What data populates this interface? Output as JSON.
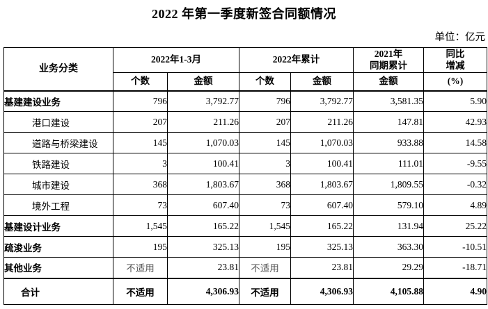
{
  "page": {
    "title": "2022 年第一季度新签合同额情况",
    "unit_label": "单位：亿元"
  },
  "table": {
    "header": {
      "category": "业务分类",
      "period_2022_q1": "2022年1-3月",
      "period_2022_cum": "2022年累计",
      "period_2021_cum": "2021年\n同期累计",
      "yoy_change": "同比\n增减"
    },
    "subheaders": [
      "个数",
      "金额",
      "个数",
      "金额",
      "金额",
      "(%)"
    ],
    "rows": [
      {
        "label": "基建建设业务",
        "bold": true,
        "indent": false,
        "total": false,
        "values": [
          "796",
          "3,792.77",
          "796",
          "3,792.77",
          "3,581.35",
          "5.90"
        ]
      },
      {
        "label": "港口建设",
        "bold": false,
        "indent": true,
        "total": false,
        "values": [
          "207",
          "211.26",
          "207",
          "211.26",
          "147.81",
          "42.93"
        ]
      },
      {
        "label": "道路与桥梁建设",
        "bold": false,
        "indent": true,
        "total": false,
        "values": [
          "145",
          "1,070.03",
          "145",
          "1,070.03",
          "933.88",
          "14.58"
        ]
      },
      {
        "label": "铁路建设",
        "bold": false,
        "indent": true,
        "total": false,
        "values": [
          "3",
          "100.41",
          "3",
          "100.41",
          "111.01",
          "-9.55"
        ]
      },
      {
        "label": "城市建设",
        "bold": false,
        "indent": true,
        "total": false,
        "values": [
          "368",
          "1,803.67",
          "368",
          "1,803.67",
          "1,809.55",
          "-0.32"
        ]
      },
      {
        "label": "境外工程",
        "bold": false,
        "indent": true,
        "total": false,
        "values": [
          "73",
          "607.40",
          "73",
          "607.40",
          "579.10",
          "4.89"
        ]
      },
      {
        "label": "基建设计业务",
        "bold": true,
        "indent": false,
        "total": false,
        "values": [
          "1,545",
          "165.22",
          "1,545",
          "165.22",
          "131.94",
          "25.22"
        ]
      },
      {
        "label": "疏浚业务",
        "bold": true,
        "indent": false,
        "total": false,
        "values": [
          "195",
          "325.13",
          "195",
          "325.13",
          "363.30",
          "-10.51"
        ]
      },
      {
        "label": "其他业务",
        "bold": true,
        "indent": false,
        "total": false,
        "values": [
          "不适用",
          "23.81",
          "不适用",
          "23.81",
          "29.29",
          "-18.71"
        ]
      },
      {
        "label": "合计",
        "bold": true,
        "indent": false,
        "total": true,
        "values": [
          "不适用",
          "4,306.93",
          "不适用",
          "4,306.93",
          "4,105.88",
          "4.90"
        ]
      }
    ],
    "na_text": "不适用"
  }
}
